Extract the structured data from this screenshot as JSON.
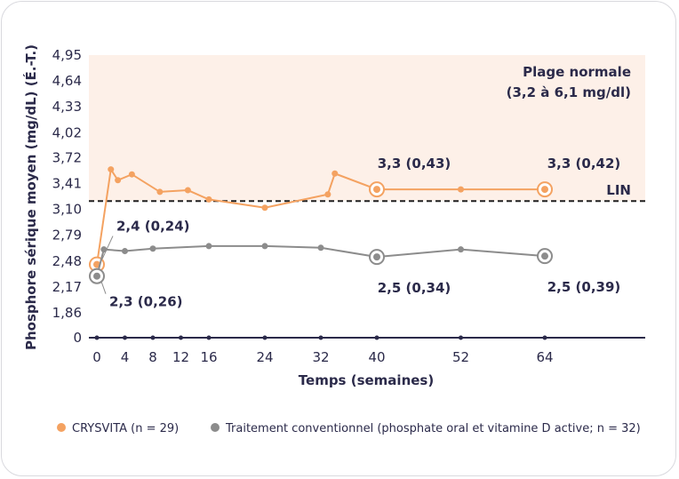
{
  "chart_data": {
    "type": "line",
    "ylabel": "Phosphore sérique moyen (mg/dL) (É.-T.)",
    "xlabel": "Temps (semaines)",
    "y_ticks": [
      "0",
      "1,86",
      "2,17",
      "2,48",
      "2,79",
      "3,10",
      "3,41",
      "3,72",
      "4,02",
      "4,33",
      "4,64",
      "4,95"
    ],
    "y_tick_values": [
      0,
      1.86,
      2.17,
      2.48,
      2.79,
      3.1,
      3.41,
      3.72,
      4.02,
      4.33,
      4.64,
      4.95
    ],
    "x_ticks": [
      "0",
      "4",
      "8",
      "12",
      "16",
      "24",
      "32",
      "40",
      "52",
      "64"
    ],
    "x_tick_values": [
      0,
      4,
      8,
      12,
      16,
      24,
      32,
      40,
      52,
      64
    ],
    "normal_range": {
      "label_line1": "Plage normale",
      "label_line2": "(3,2 à 6,1 mg/dl)",
      "min": 3.2,
      "max": 6.1
    },
    "lin": {
      "label": "LIN",
      "value": 3.2
    },
    "series": [
      {
        "name": "CRYSVITA",
        "legend": "CRYSVITA (n = 29)",
        "color": "#f4a261",
        "x": [
          0,
          2,
          3,
          5,
          9,
          13,
          16,
          24,
          33,
          34,
          40,
          52,
          64
        ],
        "y": [
          2.44,
          3.58,
          3.45,
          3.52,
          3.31,
          3.33,
          3.22,
          3.12,
          3.28,
          3.53,
          3.34,
          3.34,
          3.34
        ]
      },
      {
        "name": "Traitement conventionnel",
        "legend": "Traitement conventionnel (phosphate oral et vitamine D active; n = 32)",
        "color": "#8c8c8c",
        "x": [
          0,
          1,
          4,
          8,
          16,
          24,
          32,
          40,
          52,
          64
        ],
        "y": [
          2.3,
          2.62,
          2.6,
          2.63,
          2.66,
          2.66,
          2.64,
          2.53,
          2.62,
          2.54
        ]
      }
    ],
    "markers_at_zero_x": [
      0,
      4,
      8,
      12,
      16,
      24,
      32,
      40,
      52,
      64
    ],
    "annotations": [
      {
        "text": "2,4 (0,24)",
        "series": 0,
        "x": 0
      },
      {
        "text": "2,3 (0,26)",
        "series": 1,
        "x": 0
      },
      {
        "text": "3,3 (0,43)",
        "series": 0,
        "x": 40
      },
      {
        "text": "3,3 (0,42)",
        "series": 0,
        "x": 64
      },
      {
        "text": "2,5 (0,34)",
        "series": 1,
        "x": 40
      },
      {
        "text": "2,5 (0,39)",
        "series": 1,
        "x": 64
      }
    ],
    "highlighted_points": [
      {
        "series": 0,
        "x": 0
      },
      {
        "series": 0,
        "x": 40
      },
      {
        "series": 0,
        "x": 64
      },
      {
        "series": 1,
        "x": 0
      },
      {
        "series": 1,
        "x": 40
      },
      {
        "series": 1,
        "x": 64
      }
    ]
  }
}
